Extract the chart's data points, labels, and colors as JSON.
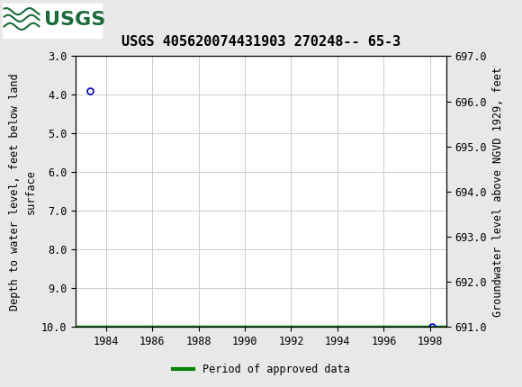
{
  "title": "USGS 405620074431903 270248-- 65-3",
  "ylabel_left": "Depth to water level, feet below land\nsurface",
  "ylabel_right": "Groundwater level above NGVD 1929, feet",
  "ylim_left": [
    3.0,
    10.0
  ],
  "ylim_right": [
    691.0,
    697.0
  ],
  "xlim": [
    1982.7,
    1998.7
  ],
  "xticks": [
    1984,
    1986,
    1988,
    1990,
    1992,
    1994,
    1996,
    1998
  ],
  "yticks_left": [
    3.0,
    4.0,
    5.0,
    6.0,
    7.0,
    8.0,
    9.0,
    10.0
  ],
  "yticks_right": [
    691.0,
    692.0,
    693.0,
    694.0,
    695.0,
    696.0,
    697.0
  ],
  "data_points_x": [
    1983.3,
    1998.1
  ],
  "data_points_y": [
    3.9,
    10.0
  ],
  "data_point_color": "#0000cc",
  "data_point_markersize": 5,
  "line_x_start": 1982.7,
  "line_x_end": 1998.7,
  "line_y": 10.0,
  "line_color": "#008000",
  "line_width": 2.5,
  "header_bg_color": "#1a6b3a",
  "header_text_color": "#ffffff",
  "plot_bg_color": "#ffffff",
  "fig_bg_color": "#e8e8e8",
  "grid_color": "#cccccc",
  "title_fontsize": 11,
  "axis_label_fontsize": 8.5,
  "tick_fontsize": 8.5,
  "legend_label": "Period of approved data",
  "legend_line_color": "#008000",
  "border_color": "#000000"
}
